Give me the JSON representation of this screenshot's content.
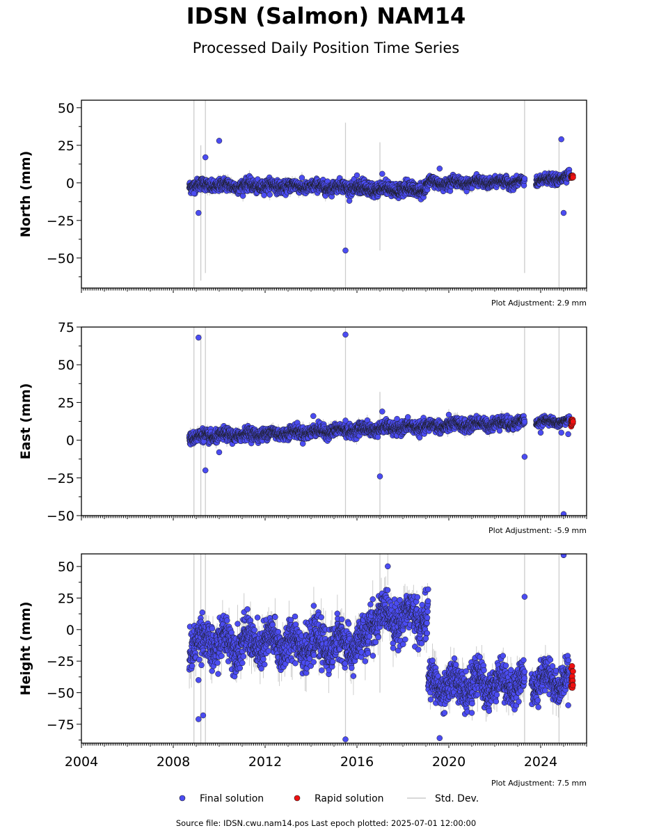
{
  "title": "IDSN (Salmon) NAM14",
  "subtitle": "Processed Daily Position Time Series",
  "footer": "Source file: IDSN.cwu.nam14.pos  Last epoch plotted: 2025-07-01 12:00:00",
  "legend": {
    "final": "Final solution",
    "rapid": "Rapid solution",
    "std": "Std. Dev."
  },
  "colors": {
    "final": "#4b4cf2",
    "rapid": "#ee1111",
    "std": "#cccccc",
    "marker_edge": "#1a1a1a"
  },
  "chart_data": [
    {
      "type": "scatter",
      "ylabel": "North (mm)",
      "ylim": [
        -70,
        55
      ],
      "yticks": [
        -50,
        -25,
        0,
        25,
        50
      ],
      "xlim": [
        2004,
        2026
      ],
      "xticks": [
        2004,
        2008,
        2012,
        2016,
        2020,
        2024
      ],
      "adjustment": "Plot Adjustment: 2.9 mm",
      "segments": [
        {
          "x": [
            2008.7,
            2019.0
          ],
          "y": [
            -1.5,
            -3.5
          ],
          "sigma": 2.5
        },
        {
          "x": [
            2016.0,
            2019.0
          ],
          "y": [
            -5.0,
            -5.0
          ],
          "sigma": 2.0
        },
        {
          "x": [
            2019.0,
            2023.3
          ],
          "y": [
            0.0,
            0.5
          ],
          "sigma": 2.0
        },
        {
          "x": [
            2023.8,
            2025.25
          ],
          "y": [
            0.5,
            4.5
          ],
          "sigma": 2.0
        }
      ],
      "outliers": [
        [
          2008.9,
          -7
        ],
        [
          2009.1,
          -20
        ],
        [
          2009.4,
          17
        ],
        [
          2010.0,
          28
        ],
        [
          2015.5,
          -45
        ],
        [
          2016.0,
          5
        ],
        [
          2017.1,
          6
        ],
        [
          2019.6,
          9.5
        ],
        [
          2024.9,
          29
        ],
        [
          2025.0,
          -20
        ]
      ],
      "rapid": {
        "x": [
          2025.32,
          2025.5
        ],
        "y": [
          3.0,
          5.0
        ]
      },
      "std_lines": [
        [
          2008.9,
          -70,
          55
        ],
        [
          2009.2,
          -65,
          25
        ],
        [
          2009.4,
          -60,
          55
        ],
        [
          2015.5,
          -70,
          40
        ],
        [
          2017.0,
          -45,
          27
        ],
        [
          2023.3,
          -60,
          55
        ],
        [
          2024.8,
          -70,
          30
        ]
      ]
    },
    {
      "type": "scatter",
      "ylabel": "East (mm)",
      "ylim": [
        -50,
        75
      ],
      "yticks": [
        -50,
        -25,
        0,
        25,
        50,
        75
      ],
      "xlim": [
        2004,
        2026
      ],
      "xticks": [
        2004,
        2008,
        2012,
        2016,
        2020,
        2024
      ],
      "adjustment": "Plot Adjustment: -5.9 mm",
      "segments": [
        {
          "x": [
            2008.7,
            2023.3
          ],
          "y": [
            2.0,
            12.0
          ],
          "sigma": 2.5
        },
        {
          "x": [
            2023.8,
            2025.25
          ],
          "y": [
            12.0,
            12.5
          ],
          "sigma": 1.5
        }
      ],
      "outliers": [
        [
          2009.1,
          68
        ],
        [
          2009.4,
          -20
        ],
        [
          2010.0,
          -8
        ],
        [
          2014.1,
          16
        ],
        [
          2015.5,
          70
        ],
        [
          2015.5,
          13
        ],
        [
          2017.0,
          -24
        ],
        [
          2017.1,
          19
        ],
        [
          2023.3,
          -11
        ],
        [
          2024.0,
          5
        ],
        [
          2024.9,
          5
        ],
        [
          2025.0,
          -49
        ],
        [
          2025.2,
          4
        ]
      ],
      "rapid": {
        "x": [
          2025.32,
          2025.5
        ],
        "y": [
          9.0,
          14.0
        ]
      },
      "std_lines": [
        [
          2008.9,
          -50,
          75
        ],
        [
          2009.2,
          -50,
          70
        ],
        [
          2009.4,
          -50,
          75
        ],
        [
          2015.5,
          -50,
          75
        ],
        [
          2017.0,
          -50,
          32
        ],
        [
          2023.3,
          -50,
          75
        ],
        [
          2024.8,
          -50,
          75
        ]
      ]
    },
    {
      "type": "scatter",
      "ylabel": "Height (mm)",
      "ylim": [
        -90,
        60
      ],
      "yticks": [
        -75,
        -50,
        -25,
        0,
        25,
        50
      ],
      "xlim": [
        2004,
        2026
      ],
      "xticks": [
        2004,
        2008,
        2012,
        2016,
        2020,
        2024
      ],
      "adjustment": "Plot Adjustment: 7.5 mm",
      "segments": [
        {
          "x": [
            2008.7,
            2016.5
          ],
          "y": [
            -10.0,
            -12.0
          ],
          "sigma": 10.0
        },
        {
          "x": [
            2016.5,
            2019.1
          ],
          "y": [
            10.0,
            10.0
          ],
          "sigma": 10.0
        },
        {
          "x": [
            2019.1,
            2023.3
          ],
          "y": [
            -45.0,
            -42.0
          ],
          "sigma": 9.0
        },
        {
          "x": [
            2023.6,
            2025.25
          ],
          "y": [
            -40.0,
            -40.0
          ],
          "sigma": 8.0
        }
      ],
      "outliers": [
        [
          2009.1,
          -40
        ],
        [
          2009.1,
          -71
        ],
        [
          2009.3,
          -68
        ],
        [
          2015.5,
          -87
        ],
        [
          2019.0,
          -7
        ],
        [
          2019.6,
          -86
        ],
        [
          2021.0,
          -66
        ],
        [
          2023.3,
          26
        ],
        [
          2025.0,
          59
        ],
        [
          2025.2,
          -60
        ]
      ],
      "rapid": {
        "x": [
          2025.32,
          2025.5
        ],
        "y": [
          -47.0,
          -28.0
        ]
      },
      "std_lines": [
        [
          2008.9,
          -90,
          60
        ],
        [
          2009.2,
          -90,
          60
        ],
        [
          2009.4,
          -90,
          60
        ],
        [
          2015.5,
          -90,
          60
        ],
        [
          2017.0,
          -50,
          60
        ],
        [
          2023.3,
          -90,
          60
        ],
        [
          2024.8,
          -90,
          60
        ]
      ]
    }
  ]
}
